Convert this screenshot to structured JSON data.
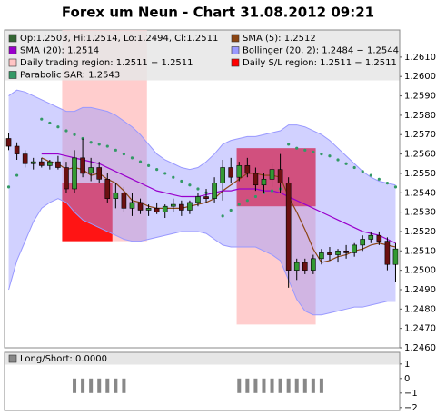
{
  "chart_data": [
    {
      "type": "candlestick",
      "title": "Forex um Neun - Chart 31.08.2012 09:21",
      "ohlc_label": "Op:1.2503, Hi:1.2514, Lo:1.2494, Cl:1.2511",
      "ohlc_color": "#336633",
      "up_color": "#339933",
      "down_color": "#6b1010",
      "open": [
        1.2568,
        1.2564,
        1.256,
        1.2555,
        1.2556,
        1.2554,
        1.2556,
        1.2553,
        1.2542,
        1.2558,
        1.255,
        1.2553,
        1.2547,
        1.2537,
        1.254,
        1.2532,
        1.2535,
        1.2531,
        1.2532,
        1.253,
        1.2533,
        1.2534,
        1.2531,
        1.2535,
        1.2538,
        1.2537,
        1.2545,
        1.2553,
        1.2548,
        1.2554,
        1.255,
        1.2544,
        1.2547,
        1.2552,
        1.2545,
        1.25,
        1.2504,
        1.25,
        1.2506,
        1.2509,
        1.2508,
        1.251,
        1.2509,
        1.2513,
        1.2516,
        1.2518,
        1.2515,
        1.2503
      ],
      "high": [
        1.2571,
        1.2566,
        1.2562,
        1.2558,
        1.2558,
        1.2557,
        1.2559,
        1.2556,
        1.2562,
        1.2568,
        1.2558,
        1.2556,
        1.255,
        1.2545,
        1.2543,
        1.254,
        1.2537,
        1.2534,
        1.2535,
        1.2534,
        1.2537,
        1.2536,
        1.2536,
        1.254,
        1.2542,
        1.2548,
        1.2557,
        1.2558,
        1.2556,
        1.2558,
        1.2553,
        1.255,
        1.2555,
        1.256,
        1.2548,
        1.2506,
        1.2506,
        1.2508,
        1.2511,
        1.2512,
        1.2511,
        1.2513,
        1.2514,
        1.2518,
        1.252,
        1.252,
        1.2517,
        1.2514
      ],
      "low": [
        1.2562,
        1.2557,
        1.2553,
        1.2552,
        1.2553,
        1.2552,
        1.2552,
        1.254,
        1.254,
        1.2548,
        1.2546,
        1.2545,
        1.2535,
        1.2532,
        1.253,
        1.2528,
        1.2529,
        1.2528,
        1.2529,
        1.2527,
        1.253,
        1.2528,
        1.2529,
        1.2533,
        1.2535,
        1.2535,
        1.2536,
        1.2545,
        1.2546,
        1.2548,
        1.2541,
        1.254,
        1.2543,
        1.254,
        1.2491,
        1.2495,
        1.2498,
        1.2498,
        1.2503,
        1.2505,
        1.2504,
        1.2506,
        1.2507,
        1.251,
        1.2514,
        1.2513,
        1.25,
        1.2494
      ],
      "close": [
        1.2564,
        1.256,
        1.2555,
        1.2556,
        1.2554,
        1.2556,
        1.2553,
        1.2542,
        1.2558,
        1.255,
        1.2553,
        1.2547,
        1.2537,
        1.254,
        1.2532,
        1.2535,
        1.2531,
        1.2532,
        1.253,
        1.2533,
        1.2534,
        1.2531,
        1.2535,
        1.2538,
        1.2537,
        1.2545,
        1.2553,
        1.2548,
        1.2554,
        1.255,
        1.2544,
        1.2547,
        1.2552,
        1.2545,
        1.25,
        1.2504,
        1.25,
        1.2506,
        1.2509,
        1.2508,
        1.251,
        1.2509,
        1.2513,
        1.2516,
        1.2518,
        1.2515,
        1.2503,
        1.2511
      ],
      "series": [
        {
          "name": "SMA (5): 1.2512",
          "color": "#8b4513",
          "values": [
            null,
            null,
            null,
            null,
            1.2558,
            1.2556,
            1.2555,
            1.2552,
            1.2553,
            1.2552,
            1.2549,
            1.255,
            1.2547,
            1.2545,
            1.2541,
            1.2536,
            1.2535,
            1.2533,
            1.2532,
            1.2532,
            1.2532,
            1.2532,
            1.2533,
            1.2534,
            1.2535,
            1.2537,
            1.2541,
            1.2544,
            1.2547,
            1.255,
            1.255,
            1.2549,
            1.2549,
            1.2548,
            1.2538,
            1.253,
            1.2521,
            1.2511,
            1.2504,
            1.2505,
            1.2507,
            1.2508,
            1.251,
            1.2511,
            1.2513,
            1.2514,
            1.2513,
            1.2512
          ]
        },
        {
          "name": "SMA (20): 1.2514",
          "color": "#9900cc",
          "values": [
            null,
            null,
            null,
            null,
            1.256,
            1.256,
            1.256,
            1.2559,
            1.2558,
            1.2557,
            1.2556,
            1.2555,
            1.2553,
            1.2551,
            1.2549,
            1.2547,
            1.2545,
            1.2543,
            1.2541,
            1.254,
            1.2539,
            1.2538,
            1.2538,
            1.2538,
            1.2539,
            1.254,
            1.2541,
            1.2541,
            1.2542,
            1.2542,
            1.2542,
            1.2541,
            1.2541,
            1.254,
            1.2538,
            1.2536,
            1.2534,
            1.2532,
            1.253,
            1.2528,
            1.2526,
            1.2524,
            1.2522,
            1.252,
            1.2519,
            1.2518,
            1.2516,
            1.2514
          ]
        }
      ],
      "bollinger": {
        "name": "Bollinger (20, 2): 1.2484 − 1.2544",
        "color": "#9999ff",
        "upper": [
          1.259,
          1.2593,
          1.2592,
          1.259,
          1.2588,
          1.2586,
          1.2584,
          1.2582,
          1.2582,
          1.2584,
          1.2584,
          1.2583,
          1.2582,
          1.258,
          1.2577,
          1.2574,
          1.257,
          1.2565,
          1.256,
          1.2557,
          1.2555,
          1.2553,
          1.2552,
          1.2553,
          1.2556,
          1.256,
          1.2565,
          1.2567,
          1.2568,
          1.2569,
          1.2569,
          1.257,
          1.2571,
          1.2572,
          1.2575,
          1.2575,
          1.2574,
          1.2572,
          1.257,
          1.2567,
          1.2563,
          1.2559,
          1.2555,
          1.2551,
          1.2548,
          1.2546,
          1.2545,
          1.2544
        ],
        "lower": [
          1.249,
          1.2505,
          1.2515,
          1.2525,
          1.2532,
          1.2535,
          1.2537,
          1.2535,
          1.253,
          1.2526,
          1.2524,
          1.2522,
          1.252,
          1.2518,
          1.2516,
          1.2515,
          1.2515,
          1.2516,
          1.2517,
          1.2518,
          1.2519,
          1.252,
          1.252,
          1.252,
          1.2519,
          1.2516,
          1.2513,
          1.2512,
          1.2512,
          1.2512,
          1.2512,
          1.251,
          1.2508,
          1.2505,
          1.2495,
          1.2485,
          1.2479,
          1.2477,
          1.2477,
          1.2478,
          1.2479,
          1.248,
          1.2481,
          1.2481,
          1.2482,
          1.2483,
          1.2484,
          1.2484
        ]
      },
      "sar": {
        "name": "Parabolic SAR: 1.2543",
        "color": "#339966",
        "values": [
          1.2543,
          1.2549,
          null,
          null,
          1.2578,
          1.2576,
          1.2574,
          1.2572,
          1.257,
          1.2568,
          1.2566,
          1.2565,
          1.2564,
          1.2562,
          1.256,
          1.2558,
          1.2556,
          1.2554,
          1.2552,
          1.255,
          1.2548,
          1.2546,
          1.2544,
          1.2542,
          1.254,
          null,
          1.2528,
          1.2531,
          1.2534,
          1.2536,
          1.2538,
          1.254,
          1.2541,
          1.2542,
          1.2565,
          1.2563,
          1.2562,
          1.2561,
          1.256,
          1.2559,
          1.2557,
          1.2555,
          1.2553,
          1.2551,
          1.2549,
          1.2547,
          1.2545,
          1.2543
        ]
      },
      "regions": [
        {
          "name": "Daily trading region: 1.2511 − 1.2511",
          "color": "#ffc4c4",
          "areas": [
            {
              "from": 6.5,
              "to": 16.8,
              "low": 1.2515,
              "high": 1.2624
            },
            {
              "from": 27.7,
              "to": 37.3,
              "low": 1.2472,
              "high": 1.2563
            }
          ]
        },
        {
          "name": "Daily S/L region: 1.2511 − 1.2511",
          "color": "#ff0000",
          "areas": [
            {
              "from": 6.5,
              "to": 12.6,
              "low": 1.2515,
              "high": 1.2545
            },
            {
              "from": 27.7,
              "to": 37.3,
              "low": 1.2533,
              "high": 1.2563
            }
          ]
        }
      ],
      "ylim": [
        1.246,
        1.2624
      ],
      "yticks": [
        {
          "value": 1.246,
          "label": "1.2460"
        },
        {
          "value": 1.247,
          "label": "1.2470"
        },
        {
          "value": 1.248,
          "label": "1.2480"
        },
        {
          "value": 1.249,
          "label": "1.2490"
        },
        {
          "value": 1.25,
          "label": "1.2500"
        },
        {
          "value": 1.251,
          "label": "1.2510"
        },
        {
          "value": 1.252,
          "label": "1.2520"
        },
        {
          "value": 1.253,
          "label": "1.2530"
        },
        {
          "value": 1.254,
          "label": "1.2540"
        },
        {
          "value": 1.255,
          "label": "1.2550"
        },
        {
          "value": 1.256,
          "label": "1.2560"
        },
        {
          "value": 1.257,
          "label": "1.2570"
        },
        {
          "value": 1.258,
          "label": "1.2580"
        },
        {
          "value": 1.259,
          "label": "1.2590"
        },
        {
          "value": 1.26,
          "label": "1.2600"
        },
        {
          "value": 1.261,
          "label": "1.2610"
        }
      ],
      "grid": false
    },
    {
      "type": "bar",
      "title": "Long/Short: 0.0000",
      "color": "#888888",
      "values": [
        0,
        0,
        0,
        0,
        0,
        0,
        0,
        0,
        -1,
        -1,
        -1,
        -1,
        -1,
        -1,
        -1,
        0,
        0,
        0,
        0,
        0,
        0,
        0,
        0,
        0,
        0,
        0,
        0,
        0,
        -1,
        -1,
        -1,
        -1,
        -1,
        -1,
        -1,
        -1,
        -1,
        -1,
        -1,
        0,
        0,
        0,
        0,
        0,
        0,
        0,
        0,
        0
      ],
      "ylim": [
        -2.2,
        1.8
      ],
      "yticks": [
        1,
        0,
        {
          "value": -1,
          "label": "−1"
        },
        {
          "value": -2,
          "label": "−2"
        }
      ],
      "grid": false
    }
  ]
}
